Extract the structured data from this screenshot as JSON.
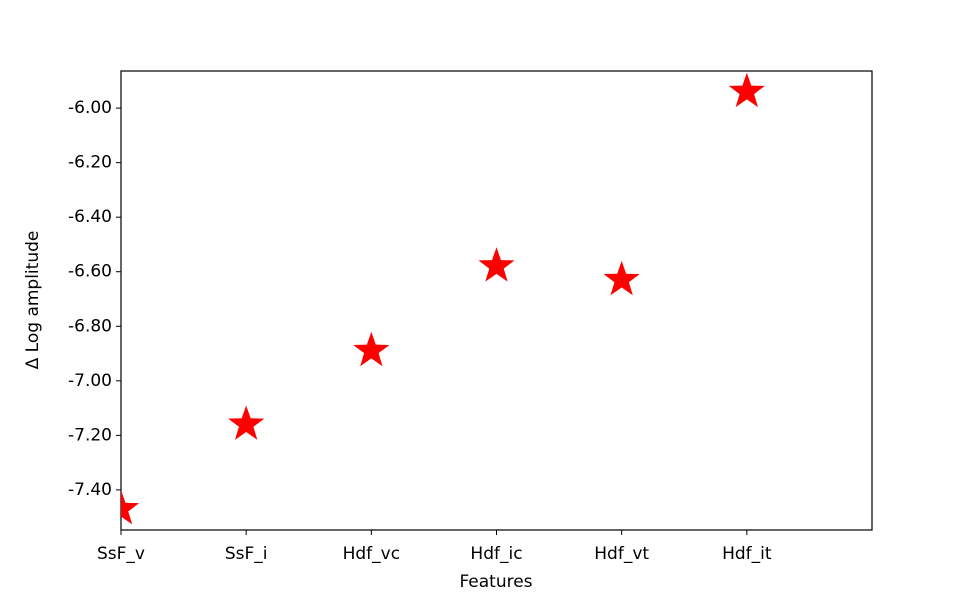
{
  "chart_data": {
    "type": "scatter",
    "marker": "star",
    "color": "#ff0000",
    "x_label": "Features",
    "y_label": "Δ Log amplitude",
    "categories": [
      "SsF_v",
      "SsF_i",
      "Hdf_vc",
      "Hdf_ic",
      "Hdf_vt",
      "Hdf_it"
    ],
    "values": [
      -7.47,
      -7.16,
      -6.89,
      -6.58,
      -6.63,
      -5.94
    ],
    "xlim": [
      0,
      6
    ],
    "ylim": [
      -7.547,
      -5.864
    ],
    "yticks": [
      {
        "value": -7.4,
        "label": "-7.40"
      },
      {
        "value": -7.2,
        "label": "-7.20"
      },
      {
        "value": -7.0,
        "label": "-7.00"
      },
      {
        "value": -6.8,
        "label": "-6.80"
      },
      {
        "value": -6.6,
        "label": "-6.60"
      },
      {
        "value": -6.4,
        "label": "-6.40"
      },
      {
        "value": -6.2,
        "label": "-6.20"
      },
      {
        "value": -6.0,
        "label": "-6.00"
      }
    ],
    "grid": false
  }
}
